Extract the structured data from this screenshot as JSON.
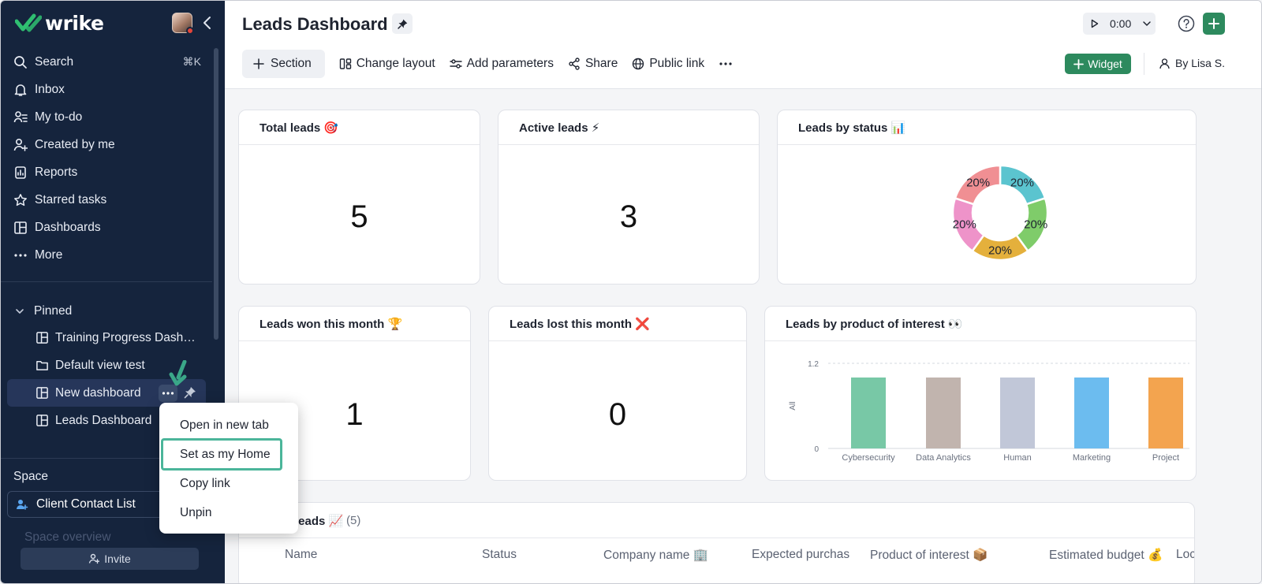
{
  "sidebar": {
    "logo_text": "wrike",
    "nav": [
      {
        "label": "Search",
        "shortcut": "⌘K",
        "icon": "search-icon"
      },
      {
        "label": "Inbox",
        "icon": "bell-icon"
      },
      {
        "label": "My to-do",
        "icon": "todo-icon"
      },
      {
        "label": "Created by me",
        "icon": "user-plus-icon"
      },
      {
        "label": "Reports",
        "icon": "report-icon"
      },
      {
        "label": "Starred tasks",
        "icon": "star-icon"
      },
      {
        "label": "Dashboards",
        "icon": "dashboard-icon"
      },
      {
        "label": "More",
        "icon": "more-icon"
      }
    ],
    "pinned": {
      "heading": "Pinned",
      "items": [
        {
          "label": "Training Progress Dash…",
          "icon": "dashboard-icon"
        },
        {
          "label": "Default view test",
          "icon": "folder-icon"
        },
        {
          "label": "New dashboard",
          "icon": "dashboard-icon"
        },
        {
          "label": "Leads Dashboard",
          "icon": "dashboard-icon"
        }
      ]
    },
    "space": {
      "heading": "Space",
      "current": "Client Contact List",
      "faded_item": "Space overview"
    },
    "invite_label": "Invite"
  },
  "context_menu": {
    "items": [
      "Open in new tab",
      "Set as my Home",
      "Copy link",
      "Unpin"
    ],
    "highlighted_index": 1
  },
  "header": {
    "title": "Leads Dashboard",
    "timer": "0:00",
    "toolbar": {
      "section": "Section",
      "change_layout": "Change layout",
      "add_parameters": "Add parameters",
      "share": "Share",
      "public_link": "Public link"
    },
    "widget_label": "Widget",
    "author": "By Lisa S."
  },
  "cards": {
    "total_leads": {
      "title": "Total leads 🎯",
      "value": "5"
    },
    "active_leads": {
      "title": "Active leads ⚡",
      "value": "3"
    },
    "leads_by_status": {
      "title": "Leads by status 📊"
    },
    "won": {
      "title": "Leads won this month 🏆",
      "value": "1"
    },
    "lost": {
      "title": "Leads lost this month ❌",
      "value": "0"
    },
    "by_product": {
      "title": "Leads by product of interest 👀"
    }
  },
  "leads_table": {
    "title": "Leads 📈",
    "count": "(5)",
    "columns": [
      "Name",
      "Status",
      "Company name 🏢",
      "Expected purchas",
      "Product of interest 📦",
      "Estimated budget 💰",
      "Locat"
    ]
  },
  "chart_data": [
    {
      "type": "pie",
      "title": "Leads by status 📊",
      "labels": [
        "",
        "",
        "",
        "",
        ""
      ],
      "values": [
        20,
        20,
        20,
        20,
        20
      ],
      "display_labels": [
        "20%",
        "20%",
        "20%",
        "20%",
        "20%"
      ],
      "colors": [
        "#5bc4cf",
        "#7fcc6a",
        "#e4b03c",
        "#ee93c9",
        "#f08f93"
      ],
      "donut": true
    },
    {
      "type": "bar",
      "title": "Leads by product of interest 👀",
      "categories": [
        "Cybersecurity",
        "Data Analytics",
        "Human",
        "Marketing",
        "Project"
      ],
      "values": [
        1,
        1,
        1,
        1,
        1
      ],
      "colors": [
        "#78c8a6",
        "#c1b4ae",
        "#c1c7d8",
        "#6cbcef",
        "#f3a44f"
      ],
      "ylabel": "All",
      "ylim": [
        0,
        1.2
      ],
      "yticks": [
        "0",
        "1.2"
      ],
      "grid": true
    }
  ]
}
